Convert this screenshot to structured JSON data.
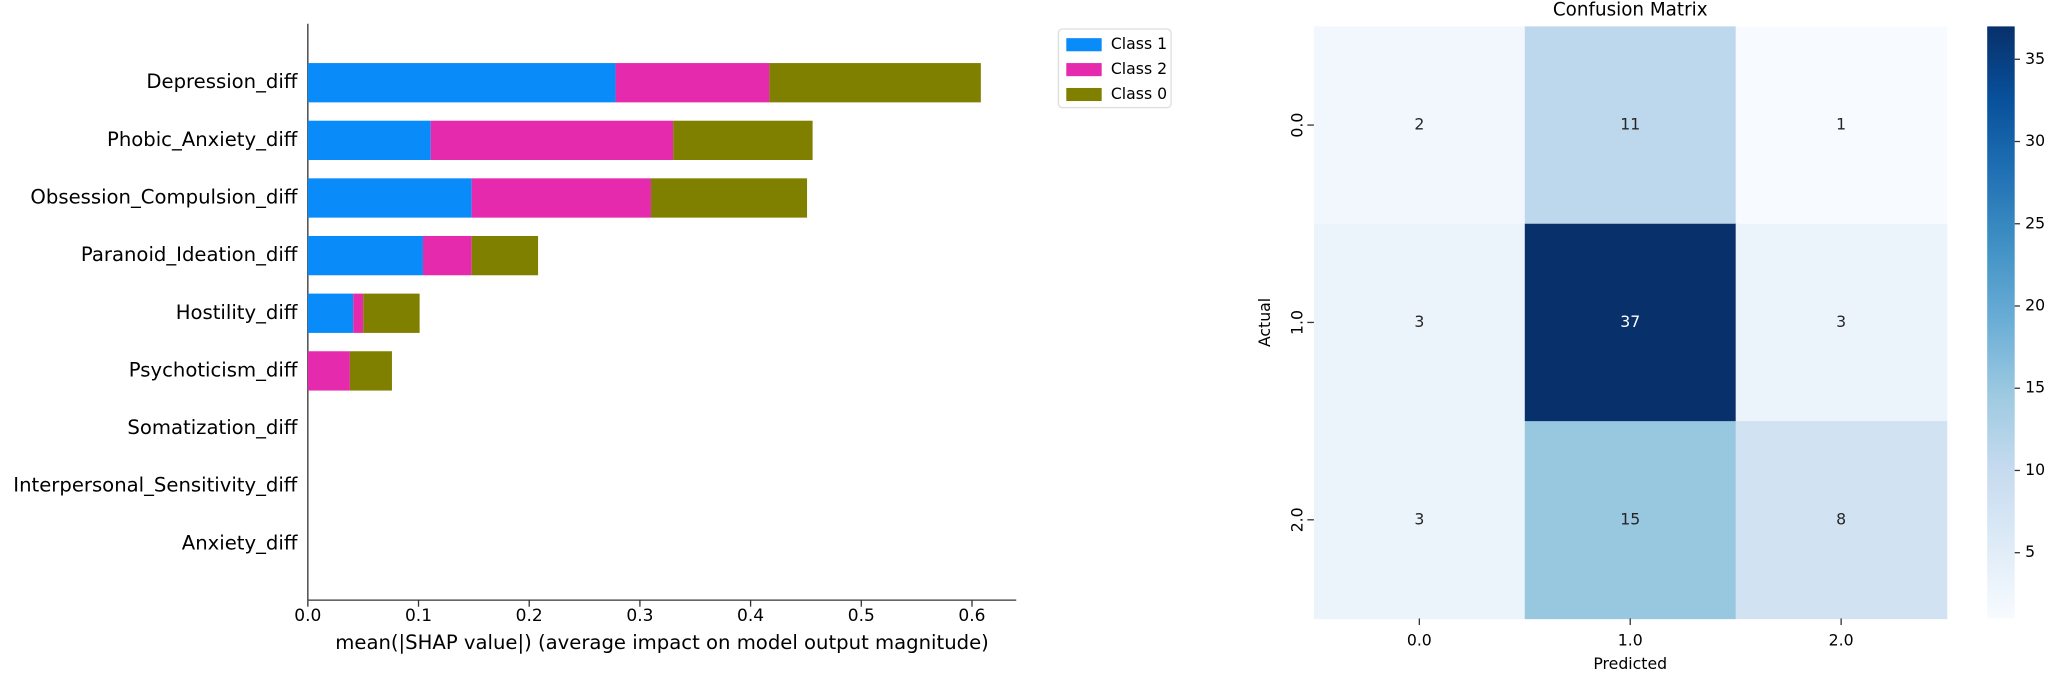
{
  "chart_data": [
    {
      "type": "hbar-stacked",
      "xlabel": "mean(|SHAP value|) (average impact on model output magnitude)",
      "categories": [
        "Depression_diff",
        "Phobic_Anxiety_diff",
        "Obsession_Compulsion_diff",
        "Paranoid_Ideation_diff",
        "Hostility_diff",
        "Psychoticism_diff",
        "Somatization_diff",
        "Interpersonal_Sensitivity_diff",
        "Anxiety_diff"
      ],
      "series": [
        {
          "name": "Class 1",
          "color": "#0a8bfa",
          "values": [
            0.278,
            0.111,
            0.148,
            0.104,
            0.041,
            0,
            0,
            0,
            0
          ]
        },
        {
          "name": "Class 2",
          "color": "#e52aad",
          "values": [
            0.139,
            0.219,
            0.162,
            0.044,
            0.009,
            0.038,
            0,
            0,
            0
          ]
        },
        {
          "name": "Class 0",
          "color": "#808000",
          "values": [
            0.191,
            0.126,
            0.141,
            0.06,
            0.051,
            0.038,
            0,
            0,
            0
          ]
        }
      ],
      "xlim": [
        0,
        0.64
      ],
      "xticks": [
        {
          "value": 0,
          "label": "0.0"
        },
        0.1,
        0.2,
        0.3,
        0.4,
        0.5,
        0.6
      ],
      "legend": "upper right"
    },
    {
      "type": "heatmap",
      "title": "Confusion Matrix",
      "xlabel": "Predicted",
      "ylabel": "Actual",
      "x": [
        "0.0",
        "1.0",
        "2.0"
      ],
      "y": [
        "0.0",
        "1.0",
        "2.0"
      ],
      "values": [
        [
          2,
          11,
          1
        ],
        [
          3,
          37,
          3
        ],
        [
          3,
          15,
          8
        ]
      ],
      "clim": [
        1,
        37
      ],
      "cticks": [
        5,
        10,
        15,
        20,
        25,
        30,
        35
      ],
      "colors": [
        "#f7fbff",
        "#deebf7",
        "#c6dbef",
        "#9ecae1",
        "#6baed6",
        "#4292c6",
        "#2171b5",
        "#08519c",
        "#08306b"
      ]
    }
  ]
}
